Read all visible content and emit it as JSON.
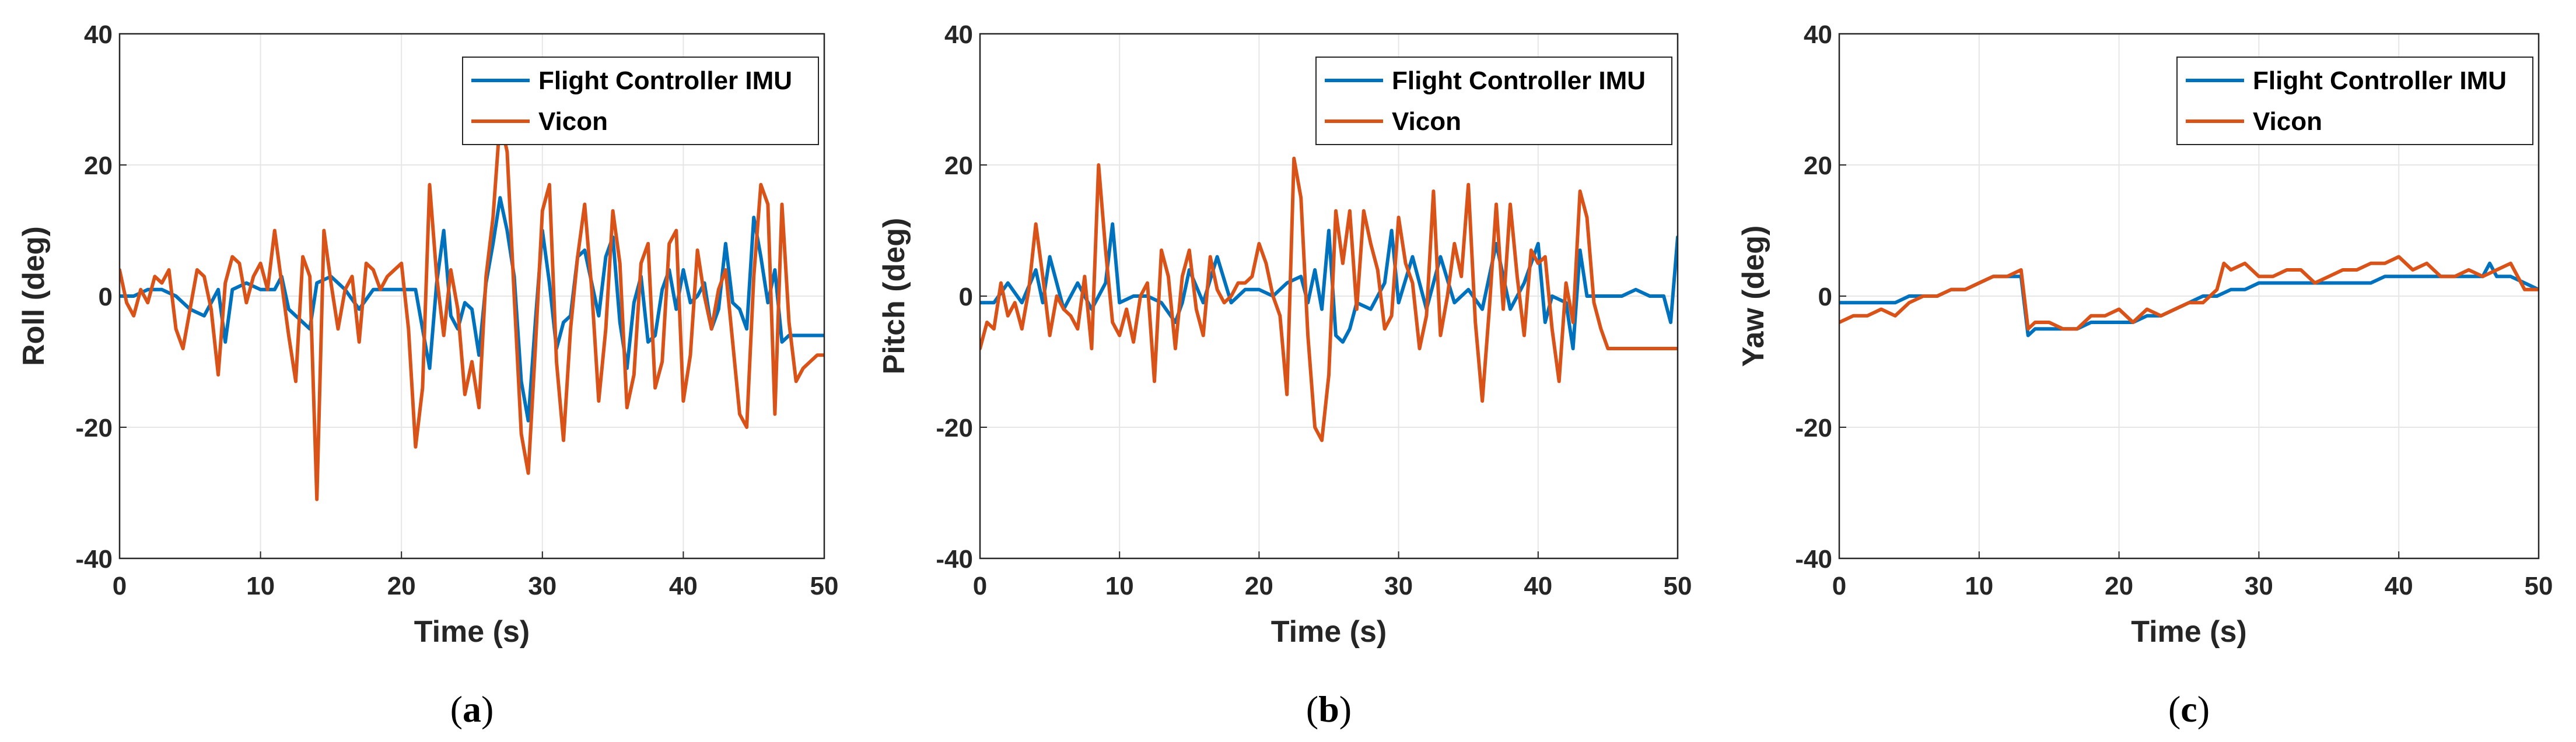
{
  "chart_data": [
    {
      "type": "line",
      "caption": "a",
      "xlabel": "Time (s)",
      "ylabel": "Roll (deg)",
      "xlim": [
        0,
        50
      ],
      "ylim": [
        -40,
        40
      ],
      "xticks": [
        "0",
        "10",
        "20",
        "30",
        "40",
        "50"
      ],
      "yticks": [
        "-40",
        "-20",
        "0",
        "20",
        "40"
      ],
      "grid": true,
      "legend_position": "top-right",
      "series": [
        {
          "name": "Flight Controller IMU",
          "color": "#0072BD",
          "x": [
            0,
            1,
            2,
            3,
            4,
            5,
            6,
            7,
            7.5,
            8,
            9,
            10,
            11,
            11.5,
            12,
            13,
            13.5,
            14,
            15,
            16,
            17,
            18,
            19,
            20,
            21,
            21.5,
            22,
            22.5,
            23,
            23.5,
            24,
            24.5,
            25,
            25.5,
            26,
            26.5,
            27,
            27.5,
            28,
            28.5,
            29,
            29.5,
            30,
            30.5,
            31,
            31.5,
            32,
            32.5,
            33,
            33.5,
            34,
            34.5,
            35,
            35.5,
            36,
            36.5,
            37,
            37.5,
            38,
            38.5,
            39,
            39.5,
            40,
            40.5,
            41,
            41.5,
            42,
            42.5,
            43,
            43.5,
            44,
            44.5,
            45,
            45.5,
            46,
            46.5,
            47,
            47.5,
            48,
            48.5,
            49,
            49.5,
            50
          ],
          "y": [
            0,
            0,
            1,
            1,
            0,
            -2,
            -3,
            1,
            -7,
            1,
            2,
            1,
            1,
            3,
            -2,
            -4,
            -5,
            2,
            3,
            1,
            -2,
            1,
            1,
            1,
            1,
            -5,
            -11,
            2,
            10,
            -3,
            -5,
            -1,
            -2,
            -9,
            2,
            8,
            15,
            10,
            3,
            -13,
            -19,
            -4,
            10,
            2,
            -8,
            -4,
            -3,
            6,
            7,
            2,
            -3,
            6,
            9,
            -4,
            -11,
            -1,
            3,
            -7,
            -6,
            1,
            4,
            -2,
            4,
            -1,
            0,
            2,
            -5,
            -2,
            8,
            -1,
            -2,
            -5,
            12,
            6,
            -1,
            4,
            -7,
            -6,
            -6,
            -6,
            -6,
            -6,
            -6
          ]
        },
        {
          "name": "Vicon",
          "color": "#D95319",
          "x": [
            0,
            0.5,
            1,
            1.5,
            2,
            2.5,
            3,
            3.5,
            4,
            4.5,
            5,
            5.5,
            6,
            6.5,
            7,
            7.5,
            8,
            8.5,
            9,
            9.5,
            10,
            10.5,
            11,
            11.5,
            12,
            12.5,
            13,
            13.5,
            14,
            14.5,
            15,
            15.5,
            16,
            16.5,
            17,
            17.5,
            18,
            18.5,
            19,
            19.5,
            20,
            20.5,
            21,
            21.5,
            22,
            22.5,
            23,
            23.5,
            24,
            24.5,
            25,
            25.5,
            26,
            26.5,
            27,
            27.5,
            28,
            28.5,
            29,
            29.5,
            30,
            30.5,
            31,
            31.5,
            32,
            32.5,
            33,
            33.5,
            34,
            34.5,
            35,
            35.5,
            36,
            36.5,
            37,
            37.5,
            38,
            38.5,
            39,
            39.5,
            40,
            40.5,
            41,
            41.5,
            42,
            42.5,
            43,
            43.5,
            44,
            44.5,
            45,
            45.5,
            46,
            46.5,
            47,
            47.5,
            48,
            48.5,
            49,
            49.5,
            50
          ],
          "y": [
            4,
            -1,
            -3,
            1,
            -1,
            3,
            2,
            4,
            -5,
            -8,
            -2,
            4,
            3,
            -2,
            -12,
            2,
            6,
            5,
            -1,
            3,
            5,
            1,
            10,
            2,
            -6,
            -13,
            6,
            3,
            -31,
            10,
            2,
            -5,
            1,
            3,
            -7,
            5,
            4,
            1,
            3,
            4,
            5,
            -5,
            -23,
            -14,
            17,
            3,
            -6,
            4,
            -2,
            -15,
            -10,
            -17,
            3,
            12,
            27,
            22,
            0,
            -21,
            -27,
            -8,
            13,
            17,
            -10,
            -22,
            -5,
            6,
            14,
            1,
            -16,
            -5,
            13,
            5,
            -17,
            -12,
            5,
            8,
            -14,
            -10,
            8,
            10,
            -16,
            -9,
            7,
            0,
            -5,
            1,
            4,
            -7,
            -18,
            -20,
            3,
            17,
            14,
            -18,
            14,
            -4,
            -13,
            -11,
            -10,
            -9,
            -9
          ]
        }
      ]
    },
    {
      "type": "line",
      "caption": "b",
      "xlabel": "Time (s)",
      "ylabel": "Pitch (deg)",
      "xlim": [
        0,
        50
      ],
      "ylim": [
        -40,
        40
      ],
      "xticks": [
        "0",
        "10",
        "20",
        "30",
        "40",
        "50"
      ],
      "yticks": [
        "-40",
        "-20",
        "0",
        "20",
        "40"
      ],
      "grid": true,
      "legend_position": "top-right",
      "series": [
        {
          "name": "Flight Controller IMU",
          "color": "#0072BD",
          "x": [
            0,
            1,
            2,
            3,
            4,
            4.5,
            5,
            6,
            7,
            8,
            9,
            9.5,
            10,
            11,
            12,
            13,
            14,
            14.5,
            15,
            16,
            17,
            18,
            19,
            20,
            21,
            22,
            23,
            23.5,
            24,
            24.5,
            25,
            25.5,
            26,
            26.5,
            27,
            28,
            29,
            29.5,
            30,
            31,
            32,
            33,
            34,
            35,
            36,
            37,
            38,
            39,
            40,
            40.5,
            41,
            42,
            42.5,
            43,
            43.5,
            44,
            45,
            46,
            47,
            48,
            49,
            49.5,
            50
          ],
          "y": [
            -1,
            -1,
            2,
            -1,
            4,
            -1,
            6,
            -2,
            2,
            -2,
            2,
            11,
            -1,
            0,
            0,
            -1,
            -4,
            -1,
            4,
            -1,
            6,
            -1,
            1,
            1,
            0,
            2,
            3,
            -1,
            4,
            -2,
            10,
            -6,
            -7,
            -5,
            -1,
            -2,
            2,
            10,
            -1,
            6,
            -2,
            6,
            -1,
            1,
            -2,
            8,
            -2,
            2,
            8,
            -4,
            0,
            -1,
            -8,
            7,
            0,
            0,
            0,
            0,
            1,
            0,
            0,
            -4,
            9
          ]
        },
        {
          "name": "Vicon",
          "color": "#D95319",
          "x": [
            0,
            0.5,
            1,
            1.5,
            2,
            2.5,
            3,
            3.5,
            4,
            4.5,
            5,
            5.5,
            6,
            6.5,
            7,
            7.5,
            8,
            8.5,
            9,
            9.5,
            10,
            10.5,
            11,
            11.5,
            12,
            12.5,
            13,
            13.5,
            14,
            14.5,
            15,
            15.5,
            16,
            16.5,
            17,
            17.5,
            18,
            18.5,
            19,
            19.5,
            20,
            20.5,
            21,
            21.5,
            22,
            22.5,
            23,
            23.5,
            24,
            24.5,
            25,
            25.5,
            26,
            26.5,
            27,
            27.5,
            28,
            28.5,
            29,
            29.5,
            30,
            30.5,
            31,
            31.5,
            32,
            32.5,
            33,
            33.5,
            34,
            34.5,
            35,
            35.5,
            36,
            36.5,
            37,
            37.5,
            38,
            38.5,
            39,
            39.5,
            40,
            40.5,
            41,
            41.5,
            42,
            42.5,
            43,
            43.5,
            44,
            44.5,
            45,
            45.5,
            46,
            46.5,
            47,
            47.5,
            48,
            48.5,
            49,
            49.5,
            50
          ],
          "y": [
            -8,
            -4,
            -5,
            2,
            -3,
            -1,
            -5,
            1,
            11,
            3,
            -6,
            0,
            -2,
            -3,
            -5,
            3,
            -8,
            20,
            7,
            -4,
            -6,
            -2,
            -7,
            0,
            2,
            -13,
            7,
            3,
            -8,
            3,
            7,
            -2,
            -6,
            6,
            1,
            -1,
            0,
            2,
            2,
            3,
            8,
            5,
            0,
            -3,
            -15,
            21,
            15,
            -6,
            -20,
            -22,
            -12,
            13,
            5,
            13,
            -2,
            13,
            8,
            4,
            -5,
            -3,
            12,
            5,
            2,
            -8,
            -3,
            16,
            -6,
            0,
            8,
            3,
            17,
            -4,
            -16,
            -2,
            14,
            -2,
            14,
            3,
            -6,
            7,
            5,
            6,
            -5,
            -13,
            2,
            -4,
            16,
            12,
            -1,
            -5,
            -8,
            -8,
            -8,
            -8,
            -8,
            -8,
            -8,
            -8,
            -8,
            -8,
            -8
          ]
        }
      ]
    },
    {
      "type": "line",
      "caption": "c",
      "xlabel": "Time (s)",
      "ylabel": "Yaw (deg)",
      "xlim": [
        0,
        50
      ],
      "ylim": [
        -40,
        40
      ],
      "xticks": [
        "0",
        "10",
        "20",
        "30",
        "40",
        "50"
      ],
      "yticks": [
        "-40",
        "-20",
        "0",
        "20",
        "40"
      ],
      "grid": true,
      "legend_position": "top-right",
      "series": [
        {
          "name": "Flight Controller IMU",
          "color": "#0072BD",
          "x": [
            0,
            1,
            2,
            3,
            4,
            5,
            6,
            7,
            8,
            9,
            10,
            11,
            12,
            13,
            13.5,
            14,
            15,
            16,
            17,
            18,
            19,
            20,
            21,
            22,
            23,
            24,
            25,
            26,
            27,
            28,
            29,
            30,
            31,
            32,
            33,
            34,
            35,
            36,
            37,
            38,
            39,
            40,
            41,
            42,
            43,
            44,
            45,
            46,
            46.5,
            47,
            48,
            49,
            50
          ],
          "y": [
            -1,
            -1,
            -1,
            -1,
            -1,
            0,
            0,
            0,
            1,
            1,
            2,
            3,
            3,
            3,
            -6,
            -5,
            -5,
            -5,
            -5,
            -4,
            -4,
            -4,
            -4,
            -3,
            -3,
            -2,
            -1,
            0,
            0,
            1,
            1,
            2,
            2,
            2,
            2,
            2,
            2,
            2,
            2,
            2,
            3,
            3,
            3,
            3,
            3,
            3,
            3,
            3,
            5,
            3,
            3,
            2,
            1
          ]
        },
        {
          "name": "Vicon",
          "color": "#D95319",
          "x": [
            0,
            1,
            2,
            3,
            4,
            5,
            6,
            7,
            8,
            9,
            10,
            11,
            12,
            13,
            13.5,
            14,
            15,
            16,
            17,
            18,
            19,
            20,
            21,
            22,
            23,
            24,
            25,
            26,
            27,
            27.5,
            28,
            29,
            30,
            31,
            32,
            33,
            34,
            35,
            36,
            37,
            38,
            39,
            40,
            41,
            42,
            43,
            44,
            45,
            46,
            47,
            48,
            49,
            50
          ],
          "y": [
            -4,
            -3,
            -3,
            -2,
            -3,
            -1,
            0,
            0,
            1,
            1,
            2,
            3,
            3,
            4,
            -5,
            -4,
            -4,
            -5,
            -5,
            -3,
            -3,
            -2,
            -4,
            -2,
            -3,
            -2,
            -1,
            -1,
            1,
            5,
            4,
            5,
            3,
            3,
            4,
            4,
            2,
            3,
            4,
            4,
            5,
            5,
            6,
            4,
            5,
            3,
            3,
            4,
            3,
            4,
            5,
            1,
            1
          ]
        }
      ]
    }
  ]
}
